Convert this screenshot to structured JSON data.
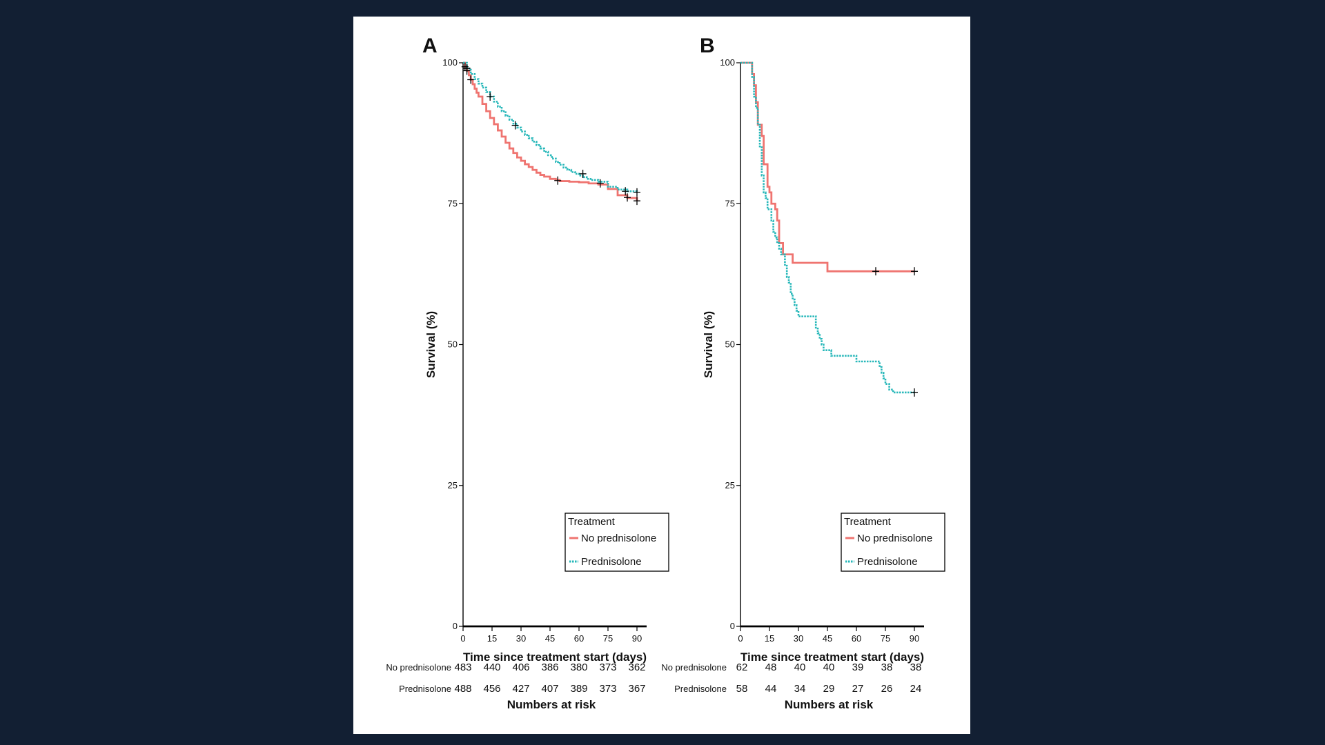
{
  "colors": {
    "background": "#121f33",
    "panel": "#ffffff",
    "no_prednisolone": "#ef7470",
    "prednisolone": "#26b7b9",
    "censor": "#000000"
  },
  "chart_data": [
    {
      "panel_label": "A",
      "type": "line",
      "subtype": "kaplan-meier",
      "xlabel": "Time since treatment start (days)",
      "ylabel": "Survival (%)",
      "xlim": [
        0,
        90
      ],
      "ylim": [
        0,
        100
      ],
      "xticks": [
        0,
        15,
        30,
        45,
        60,
        75,
        90
      ],
      "yticks": [
        0,
        25,
        50,
        75,
        100
      ],
      "legend": {
        "title": "Treatment",
        "position": "bottom-right",
        "entries": [
          {
            "label": "No prednisolone",
            "style": "solid"
          },
          {
            "label": "Prednisolone",
            "style": "dotted"
          }
        ]
      },
      "series": [
        {
          "name": "No prednisolone",
          "style": "solid",
          "x": [
            0,
            1,
            2,
            3,
            4,
            5,
            6,
            7,
            8,
            10,
            12,
            14,
            16,
            18,
            20,
            22,
            24,
            26,
            28,
            30,
            32,
            34,
            36,
            38,
            40,
            42,
            45,
            48,
            50,
            55,
            60,
            65,
            70,
            75,
            80,
            85,
            90
          ],
          "y": [
            100,
            99.3,
            98.6,
            97.8,
            97.0,
            96.2,
            95.4,
            94.7,
            94.0,
            92.7,
            91.4,
            90.2,
            89.1,
            88.0,
            86.9,
            85.8,
            84.8,
            84.0,
            83.2,
            82.6,
            82.0,
            81.5,
            81.0,
            80.5,
            80.1,
            79.8,
            79.4,
            79.2,
            79.0,
            78.9,
            78.8,
            78.6,
            78.4,
            77.6,
            76.5,
            76.0,
            75.5
          ],
          "censored": [
            {
              "x": 1,
              "y": 99.3
            },
            {
              "x": 2,
              "y": 98.6
            },
            {
              "x": 4,
              "y": 97.0
            },
            {
              "x": 49,
              "y": 79.1
            },
            {
              "x": 85,
              "y": 76.1
            },
            {
              "x": 90,
              "y": 75.5
            }
          ]
        },
        {
          "name": "Prednisolone",
          "style": "dotted",
          "x": [
            0,
            2,
            4,
            6,
            8,
            10,
            12,
            14,
            16,
            18,
            20,
            22,
            24,
            26,
            28,
            30,
            32,
            34,
            36,
            38,
            40,
            42,
            44,
            46,
            48,
            50,
            52,
            54,
            56,
            58,
            60,
            62,
            64,
            66,
            70,
            75,
            80,
            85,
            90
          ],
          "y": [
            100,
            99.0,
            98.0,
            97.1,
            96.3,
            95.6,
            94.8,
            94.0,
            93.1,
            92.2,
            91.4,
            90.6,
            89.9,
            89.2,
            88.5,
            87.8,
            87.2,
            86.6,
            86.0,
            85.4,
            84.8,
            84.2,
            83.6,
            83.0,
            82.4,
            81.9,
            81.4,
            81.0,
            80.6,
            80.3,
            80.0,
            79.7,
            79.4,
            79.2,
            78.9,
            78.0,
            77.5,
            77.2,
            77.0
          ],
          "censored": [
            {
              "x": 2,
              "y": 99.0
            },
            {
              "x": 14,
              "y": 94.0
            },
            {
              "x": 27,
              "y": 88.9
            },
            {
              "x": 62,
              "y": 80.3
            },
            {
              "x": 71,
              "y": 78.6
            },
            {
              "x": 84,
              "y": 77.2
            },
            {
              "x": 90,
              "y": 77.0
            }
          ]
        }
      ],
      "risk_table": {
        "title": "Numbers at risk",
        "times": [
          0,
          15,
          30,
          45,
          60,
          75,
          90
        ],
        "rows": [
          {
            "label": "No prednisolone",
            "values": [
              "483",
              "440",
              "406",
              "386",
              "380",
              "373",
              "362"
            ]
          },
          {
            "label": "Prednisolone",
            "values": [
              "488",
              "456",
              "427",
              "407",
              "389",
              "373",
              "367"
            ]
          }
        ]
      }
    },
    {
      "panel_label": "B",
      "type": "line",
      "subtype": "kaplan-meier",
      "xlabel": "Time since treatment start (days)",
      "ylabel": "Survival (%)",
      "xlim": [
        0,
        90
      ],
      "ylim": [
        0,
        100
      ],
      "xticks": [
        0,
        15,
        30,
        45,
        60,
        75,
        90
      ],
      "yticks": [
        0,
        25,
        50,
        75,
        100
      ],
      "legend": {
        "title": "Treatment",
        "position": "bottom-right",
        "entries": [
          {
            "label": "No prednisolone",
            "style": "solid"
          },
          {
            "label": "Prednisolone",
            "style": "dotted"
          }
        ]
      },
      "series": [
        {
          "name": "No prednisolone",
          "style": "solid",
          "x": [
            0,
            5,
            6,
            7,
            8,
            9,
            11,
            12,
            14,
            15,
            16,
            18,
            19,
            20,
            22,
            25,
            27,
            30,
            45,
            70,
            90
          ],
          "y": [
            100,
            100,
            98,
            96,
            93,
            89,
            87,
            82,
            78,
            77,
            75,
            74,
            72,
            68,
            66,
            66,
            64.5,
            64.5,
            63,
            63,
            63
          ],
          "censored": [
            {
              "x": 70,
              "y": 63
            },
            {
              "x": 90,
              "y": 63
            }
          ]
        },
        {
          "name": "Prednisolone",
          "style": "dotted",
          "x": [
            0,
            5,
            6,
            7,
            8,
            9,
            10,
            11,
            12,
            13,
            14,
            15,
            16,
            17,
            18,
            19,
            20,
            21,
            22,
            23,
            24,
            25,
            26,
            27,
            28,
            29,
            30,
            31,
            33,
            39,
            40,
            41,
            42,
            43,
            47,
            59,
            60,
            72,
            73,
            74,
            75,
            77,
            78,
            79,
            90
          ],
          "y": [
            100,
            100,
            97.5,
            94,
            92,
            89,
            85,
            80,
            77,
            76,
            74,
            74,
            72,
            70,
            69,
            68,
            67,
            66,
            66,
            64,
            62,
            61,
            59,
            58,
            57,
            56,
            55,
            55,
            55,
            53,
            52,
            51,
            50,
            49,
            48,
            48,
            47,
            46,
            45,
            44,
            43,
            42,
            42,
            41.5,
            41.5
          ],
          "censored": [
            {
              "x": 90,
              "y": 41.5
            }
          ]
        }
      ],
      "risk_table": {
        "title": "Numbers at risk",
        "times": [
          0,
          15,
          30,
          45,
          60,
          75,
          90
        ],
        "rows": [
          {
            "label": "No prednisolone",
            "values": [
              "62",
              "48",
              "40",
              "40",
              "39",
              "38",
              "38"
            ]
          },
          {
            "label": "Prednisolone",
            "values": [
              "58",
              "44",
              "34",
              "29",
              "27",
              "26",
              "24"
            ]
          }
        ]
      }
    }
  ]
}
